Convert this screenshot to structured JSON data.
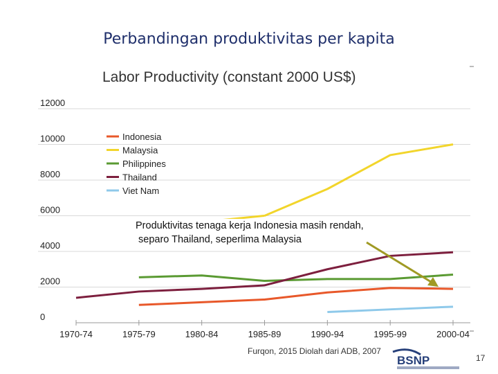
{
  "slide": {
    "title": "Perbandingan produktivitas per kapita",
    "callout_line1": "Produktivitas tenaga kerja Indonesia masih rendah,",
    "callout_line2": " separo Thailand, seperlima Malaysia",
    "source": "Furqon, 2015 Diolah dari ADB, 2007",
    "page_number": "17"
  },
  "colors": {
    "arrow": "#a09a24",
    "grid": "#d9d9d9",
    "logo": "#27407a"
  },
  "chart_data": {
    "type": "line",
    "title": "Labor Productivity (constant 2000 US$)",
    "xlabel": "",
    "ylabel": "",
    "categories": [
      "1970-74",
      "1975-79",
      "1980-84",
      "1985-89",
      "1990-94",
      "1995-99",
      "2000-04"
    ],
    "ylim": [
      0,
      12000
    ],
    "yticks": [
      0,
      2000,
      4000,
      6000,
      8000,
      10000,
      12000
    ],
    "grid": "horizontal",
    "legend_position": "top-left",
    "series": [
      {
        "name": "Indonesia",
        "color": "#e8582a",
        "values": [
          null,
          1000,
          1150,
          1300,
          1700,
          1950,
          1900
        ]
      },
      {
        "name": "Malaysia",
        "color": "#f2d52b",
        "values": [
          null,
          null,
          null,
          6000,
          7500,
          9400,
          10000
        ]
      },
      {
        "name": "Philippines",
        "color": "#5a9a32",
        "values": [
          null,
          2550,
          2650,
          2350,
          2450,
          2450,
          2700
        ]
      },
      {
        "name": "Thailand",
        "color": "#7d1f3e",
        "values": [
          1400,
          1750,
          1900,
          2100,
          3000,
          3750,
          3950
        ]
      },
      {
        "name": "Viet Nam",
        "color": "#8ec9ea",
        "values": [
          null,
          null,
          null,
          null,
          600,
          750,
          900
        ]
      }
    ]
  }
}
